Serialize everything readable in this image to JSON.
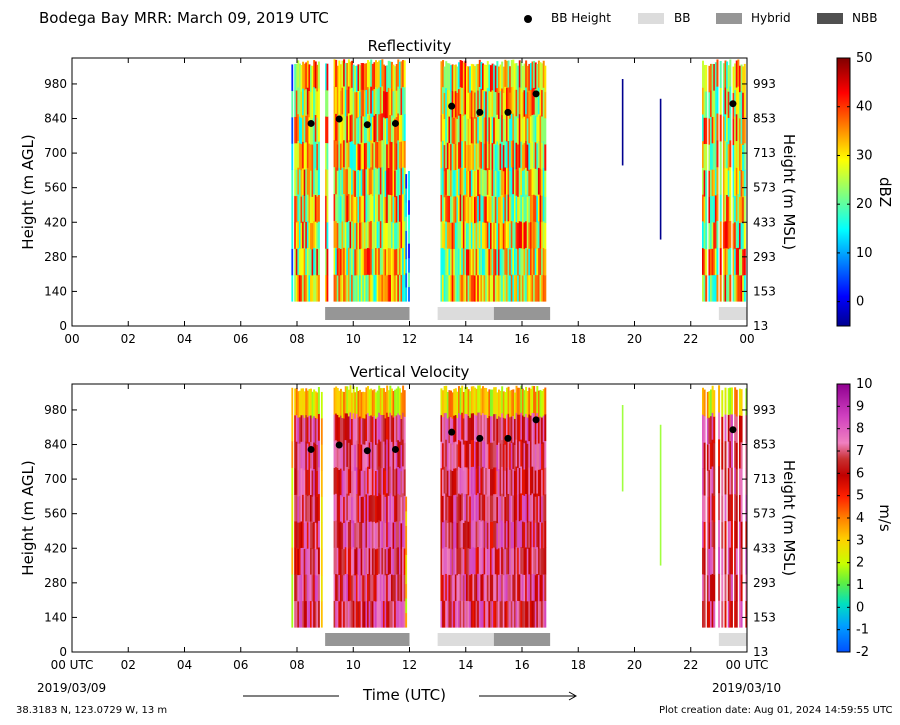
{
  "header": {
    "title": "Bodega Bay MRR:  March 09, 2019 UTC",
    "legend": [
      {
        "key": "bb_height",
        "label": "BB Height",
        "kind": "dot",
        "color": "#000000"
      },
      {
        "key": "bb",
        "label": "BB",
        "kind": "rect",
        "color": "#dcdcdc"
      },
      {
        "key": "hybrid",
        "label": "Hybrid",
        "kind": "rect",
        "color": "#969696"
      },
      {
        "key": "nbb",
        "label": "NBB",
        "kind": "rect",
        "color": "#505050"
      }
    ]
  },
  "footer": {
    "coords": "38.3183 N, 123.0729 W, 13 m",
    "created": "Plot creation date: Aug 01, 2024 14:59:55 UTC",
    "xlabel": "Time (UTC)",
    "start_date": "2019/03/09",
    "end_date": "2019/03/10"
  },
  "chart_data": [
    {
      "type": "heatmap",
      "title": "Reflectivity",
      "ylabel": "Height (m AGL)",
      "ylabel_right": "Height (m MSL)",
      "x_ticks": [
        "00",
        "02",
        "04",
        "06",
        "08",
        "10",
        "12",
        "14",
        "16",
        "18",
        "20",
        "22",
        "00"
      ],
      "xlim_hours": [
        0,
        24
      ],
      "y_ticks": [
        0,
        140,
        280,
        420,
        560,
        700,
        840,
        980
      ],
      "y_ticks_right": [
        13,
        153,
        293,
        433,
        573,
        713,
        853,
        993
      ],
      "ylim": [
        0,
        1085
      ],
      "colorbar": {
        "label": "dBZ",
        "range": [
          -5,
          50
        ],
        "ticks": [
          0,
          10,
          20,
          30,
          40,
          50
        ],
        "colormap": "jet"
      },
      "bb_height_points": [
        {
          "x_hour": 8.5,
          "height_m": 820
        },
        {
          "x_hour": 9.5,
          "height_m": 838
        },
        {
          "x_hour": 10.5,
          "height_m": 815
        },
        {
          "x_hour": 11.5,
          "height_m": 820
        },
        {
          "x_hour": 13.5,
          "height_m": 890
        },
        {
          "x_hour": 14.5,
          "height_m": 865
        },
        {
          "x_hour": 15.5,
          "height_m": 865
        },
        {
          "x_hour": 16.5,
          "height_m": 940
        },
        {
          "x_hour": 23.5,
          "height_m": 900
        }
      ],
      "bb_type_segments": [
        {
          "start_hour": 9,
          "end_hour": 12,
          "type": "Hybrid"
        },
        {
          "start_hour": 13,
          "end_hour": 15,
          "type": "BB"
        },
        {
          "start_hour": 15,
          "end_hour": 17,
          "type": "Hybrid"
        },
        {
          "start_hour": 23,
          "end_hour": 24,
          "type": "BB"
        }
      ]
    },
    {
      "type": "heatmap",
      "title": "Vertical Velocity",
      "ylabel": "Height (m AGL)",
      "ylabel_right": "Height (m MSL)",
      "x_ticks": [
        "00 UTC",
        "02",
        "04",
        "06",
        "08",
        "10",
        "12",
        "14",
        "16",
        "18",
        "20",
        "22",
        "00 UTC"
      ],
      "xlim_hours": [
        0,
        24
      ],
      "y_ticks": [
        0,
        140,
        280,
        420,
        560,
        700,
        840,
        980
      ],
      "y_ticks_right": [
        13,
        153,
        293,
        433,
        573,
        713,
        853,
        993
      ],
      "ylim": [
        0,
        1085
      ],
      "colorbar": {
        "label": "m/s",
        "range": [
          -2,
          10
        ],
        "ticks": [
          -2,
          -1,
          0,
          1,
          2,
          3,
          4,
          5,
          6,
          7,
          8,
          9,
          10
        ],
        "colormap": "velocity"
      },
      "bb_height_points": [
        {
          "x_hour": 8.5,
          "height_m": 820
        },
        {
          "x_hour": 9.5,
          "height_m": 838
        },
        {
          "x_hour": 10.5,
          "height_m": 815
        },
        {
          "x_hour": 11.5,
          "height_m": 820
        },
        {
          "x_hour": 13.5,
          "height_m": 890
        },
        {
          "x_hour": 14.5,
          "height_m": 865
        },
        {
          "x_hour": 15.5,
          "height_m": 865
        },
        {
          "x_hour": 16.5,
          "height_m": 940
        },
        {
          "x_hour": 23.5,
          "height_m": 900
        }
      ],
      "bb_type_segments": [
        {
          "start_hour": 9,
          "end_hour": 12,
          "type": "Hybrid"
        },
        {
          "start_hour": 13,
          "end_hour": 15,
          "type": "BB"
        },
        {
          "start_hour": 15,
          "end_hour": 17,
          "type": "Hybrid"
        },
        {
          "start_hour": 23,
          "end_hour": 24,
          "type": "BB"
        }
      ]
    }
  ]
}
